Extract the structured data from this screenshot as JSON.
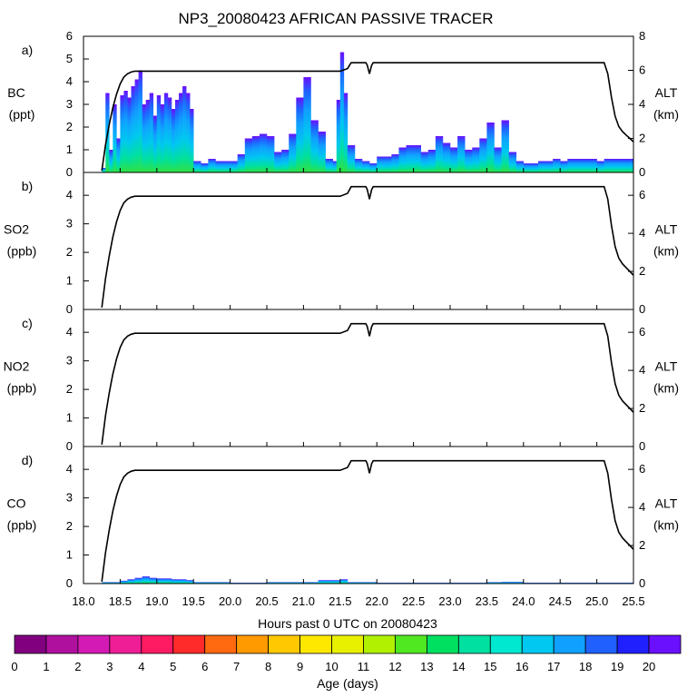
{
  "title": "NP3_20080423 AFRICAN PASSIVE TRACER",
  "xlabel": "Hours past 0 UTC on 20080423",
  "x_ticks": [
    "18.0",
    "18.5",
    "19.0",
    "19.5",
    "20.0",
    "20.5",
    "21.0",
    "21.5",
    "22.0",
    "22.5",
    "23.0",
    "23.5",
    "24.0",
    "24.5",
    "25.0",
    "25.5"
  ],
  "colorbar": {
    "label": "Age (days)",
    "ticks": [
      "0",
      "1",
      "2",
      "3",
      "4",
      "5",
      "6",
      "7",
      "8",
      "9",
      "10",
      "11",
      "12",
      "13",
      "14",
      "15",
      "16",
      "17",
      "18",
      "19",
      "20"
    ],
    "colors": [
      "#800080",
      "#b0109e",
      "#d41ab4",
      "#f01e96",
      "#ff1a64",
      "#ff2a2a",
      "#ff6a10",
      "#ff9a00",
      "#ffc800",
      "#ffe800",
      "#e8f000",
      "#b0f000",
      "#50e820",
      "#00e060",
      "#00e0a0",
      "#00e8d0",
      "#00c8f0",
      "#10a0ff",
      "#2060ff",
      "#2020ff",
      "#6a10ff"
    ]
  },
  "chart_data": [
    {
      "type": "area",
      "panel": "a)",
      "ylabel": "BC",
      "yunit": "(ppt)",
      "ylim": [
        0,
        6
      ],
      "y_ticks": [
        "0",
        "1",
        "2",
        "3",
        "4",
        "5",
        "6"
      ],
      "y2label": "ALT",
      "y2unit": "(km)",
      "y2lim": [
        0,
        8
      ],
      "y2_ticks": [
        "0",
        "2",
        "4",
        "6",
        "8"
      ],
      "series": [
        {
          "name": "",
          "x": [
            18.25,
            18.3,
            18.35,
            18.4,
            18.45,
            18.5,
            18.55,
            18.6,
            18.65,
            18.7,
            18.75,
            18.8,
            18.85,
            18.9,
            18.95,
            19.0,
            19.05,
            19.1,
            19.15,
            19.2,
            19.25,
            19.3,
            19.35,
            19.4,
            19.45,
            19.5,
            19.6,
            19.7,
            19.8,
            19.9,
            20.0,
            20.1,
            20.2,
            20.3,
            20.4,
            20.5,
            20.6,
            20.7,
            20.8,
            20.9,
            21.0,
            21.1,
            21.2,
            21.3,
            21.4,
            21.45,
            21.5,
            21.55,
            21.6,
            21.7,
            21.8,
            21.9,
            22.0,
            22.1,
            22.2,
            22.3,
            22.4,
            22.5,
            22.6,
            22.7,
            22.8,
            22.9,
            23.0,
            23.1,
            23.2,
            23.3,
            23.4,
            23.5,
            23.6,
            23.7,
            23.8,
            23.9,
            24.0,
            24.1,
            24.2,
            24.3,
            24.4,
            24.5,
            24.6,
            24.7,
            24.8,
            24.9,
            25.0,
            25.1,
            25.2,
            25.3,
            25.4,
            25.5
          ],
          "values": [
            0.2,
            3.5,
            1.0,
            3.0,
            1.5,
            3.4,
            3.6,
            3.3,
            3.8,
            4.1,
            4.5,
            3.0,
            3.2,
            3.5,
            2.5,
            3.4,
            3.0,
            3.5,
            3.3,
            2.8,
            3.2,
            3.5,
            3.8,
            3.5,
            2.8,
            0.5,
            0.4,
            0.6,
            0.5,
            0.5,
            0.5,
            0.8,
            1.5,
            1.6,
            1.7,
            1.6,
            0.9,
            1.0,
            1.7,
            3.3,
            4.2,
            2.3,
            1.8,
            0.6,
            0.5,
            3.2,
            5.3,
            3.5,
            1.2,
            0.6,
            0.5,
            0.4,
            0.7,
            0.7,
            0.8,
            1.1,
            1.2,
            1.2,
            0.9,
            1.0,
            1.6,
            1.3,
            1.1,
            1.6,
            1.0,
            1.1,
            1.5,
            2.2,
            1.1,
            2.3,
            0.9,
            0.5,
            0.4,
            0.4,
            0.5,
            0.5,
            0.6,
            0.5,
            0.6,
            0.6,
            0.6,
            0.6,
            0.5,
            0.6,
            0.6,
            0.6,
            0.6,
            0.5
          ]
        }
      ]
    },
    {
      "type": "line",
      "panel": "b)",
      "ylabel": "SO2",
      "yunit": "(ppb)",
      "ylim": [
        0,
        4.8
      ],
      "y_ticks": [
        "0",
        "1",
        "2",
        "3",
        "4"
      ],
      "y2label": "ALT",
      "y2unit": "(km)",
      "y2lim": [
        0,
        7.2
      ],
      "y2_ticks": [
        "0",
        "2",
        "4",
        "6"
      ],
      "series": []
    },
    {
      "type": "line",
      "panel": "c)",
      "ylabel": "NO2",
      "yunit": "(ppb)",
      "ylim": [
        0,
        4.8
      ],
      "y_ticks": [
        "0",
        "1",
        "2",
        "3",
        "4"
      ],
      "y2label": "ALT",
      "y2unit": "(km)",
      "y2lim": [
        0,
        7.2
      ],
      "y2_ticks": [
        "0",
        "2",
        "4",
        "6"
      ],
      "series": []
    },
    {
      "type": "area",
      "panel": "d)",
      "ylabel": "CO",
      "yunit": "(ppb)",
      "ylim": [
        0,
        4.8
      ],
      "y_ticks": [
        "0",
        "1",
        "2",
        "3",
        "4"
      ],
      "y2label": "ALT",
      "y2unit": "(km)",
      "y2lim": [
        0,
        7.2
      ],
      "y2_ticks": [
        "0",
        "2",
        "4",
        "6"
      ],
      "series": [
        {
          "name": "",
          "x": [
            18.25,
            18.5,
            18.6,
            18.7,
            18.8,
            18.9,
            19.0,
            19.2,
            19.4,
            19.5,
            20.0,
            20.5,
            21.0,
            21.2,
            21.5,
            21.6,
            22.0,
            22.5,
            23.0,
            23.5,
            23.7,
            24.0,
            24.5,
            25.0,
            25.5
          ],
          "values": [
            0.05,
            0.1,
            0.15,
            0.2,
            0.25,
            0.2,
            0.18,
            0.15,
            0.12,
            0.05,
            0.03,
            0.05,
            0.05,
            0.12,
            0.15,
            0.05,
            0.03,
            0.03,
            0.03,
            0.05,
            0.06,
            0.03,
            0.03,
            0.03,
            0.03
          ]
        }
      ]
    }
  ],
  "altitude_track": {
    "name": "ALT",
    "x": [
      18.25,
      18.3,
      18.35,
      18.4,
      18.45,
      18.5,
      18.55,
      18.6,
      18.65,
      18.7,
      18.8,
      19.0,
      19.5,
      20.0,
      20.5,
      21.0,
      21.5,
      21.6,
      21.65,
      21.85,
      21.87,
      21.9,
      21.93,
      21.95,
      22.0,
      22.5,
      23.0,
      23.5,
      24.0,
      24.5,
      25.0,
      25.1,
      25.15,
      25.2,
      25.25,
      25.3,
      25.35,
      25.4,
      25.45,
      25.5
    ],
    "km": [
      0.1,
      1.6,
      2.8,
      3.8,
      4.6,
      5.2,
      5.6,
      5.8,
      5.9,
      5.95,
      5.95,
      5.95,
      5.95,
      5.95,
      5.95,
      5.95,
      5.95,
      6.1,
      6.45,
      6.45,
      6.3,
      5.8,
      6.3,
      6.45,
      6.45,
      6.45,
      6.45,
      6.45,
      6.45,
      6.45,
      6.45,
      6.45,
      5.8,
      4.4,
      3.3,
      2.7,
      2.4,
      2.2,
      2.0,
      1.8
    ]
  }
}
